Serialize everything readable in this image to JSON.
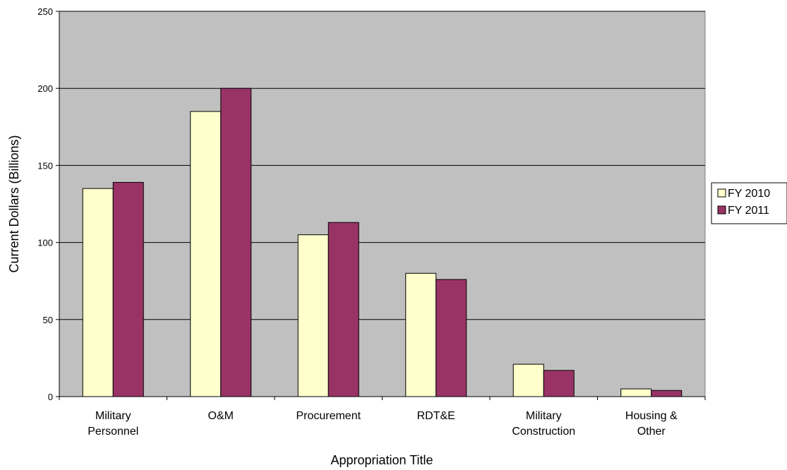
{
  "chart_data": {
    "type": "bar",
    "xlabel": "Appropriation Title",
    "ylabel": "Current Dollars (Billions)",
    "ylim": [
      0,
      250
    ],
    "yticks": [
      0,
      50,
      100,
      150,
      200,
      250
    ],
    "grid": true,
    "legend_position": "right",
    "categories": [
      [
        "Military",
        "Personnel"
      ],
      [
        "O&M"
      ],
      [
        "Procurement"
      ],
      [
        "RDT&E"
      ],
      [
        "Military",
        "Construction"
      ],
      [
        "Housing &",
        "Other"
      ]
    ],
    "series": [
      {
        "name": "FY 2010",
        "color": "#FFFFCC",
        "values": [
          135,
          185,
          105,
          80,
          21,
          5
        ]
      },
      {
        "name": "FY 2011",
        "color": "#993366",
        "values": [
          139,
          200,
          113,
          76,
          17,
          4
        ]
      }
    ],
    "plot_background": "#C0C0C0"
  }
}
